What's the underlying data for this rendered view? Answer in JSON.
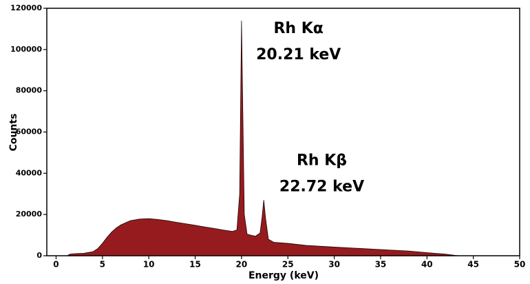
{
  "chart_data": {
    "type": "area",
    "x_label": "Energy (keV)",
    "y_label": "Counts",
    "annotations": [
      {
        "lines": [
          "Rh Kα",
          "20.21 keV"
        ],
        "x": 20.21,
        "y": 100000
      },
      {
        "lines": [
          "Rh Kβ",
          "22.72 keV"
        ],
        "x": 22.72,
        "y": 36000
      }
    ],
    "x": [
      1.2,
      1.5,
      2,
      3,
      4,
      4.5,
      5,
      5.5,
      6,
      6.5,
      7,
      7.5,
      8,
      9,
      10,
      11,
      12,
      13,
      14,
      15,
      16,
      17,
      18,
      19,
      19.5,
      19.8,
      20.0,
      20.3,
      20.6,
      21,
      21.5,
      22,
      22.2,
      22.4,
      22.6,
      22.9,
      23.5,
      25,
      27,
      30,
      33,
      35,
      38,
      40,
      42,
      43,
      43.5
    ],
    "series": [
      {
        "name": "Counts",
        "color": "#961b1f",
        "values": [
          0,
          800,
          1000,
          1200,
          2000,
          3500,
          6000,
          9000,
          11500,
          13500,
          15000,
          16000,
          17000,
          17800,
          18000,
          17600,
          17000,
          16200,
          15500,
          14800,
          14000,
          13300,
          12500,
          11800,
          12500,
          30000,
          114000,
          20000,
          10500,
          10000,
          9500,
          11000,
          18000,
          27000,
          18000,
          8000,
          6500,
          6000,
          5000,
          4200,
          3500,
          3000,
          2300,
          1500,
          800,
          200,
          0
        ]
      }
    ],
    "xlim": [
      -1,
      50
    ],
    "xticks": [
      0,
      5,
      10,
      15,
      20,
      25,
      30,
      35,
      40,
      45,
      50
    ],
    "ylim": [
      0,
      120000
    ],
    "yticks": [
      0,
      20000,
      40000,
      60000,
      80000,
      100000,
      120000
    ]
  }
}
